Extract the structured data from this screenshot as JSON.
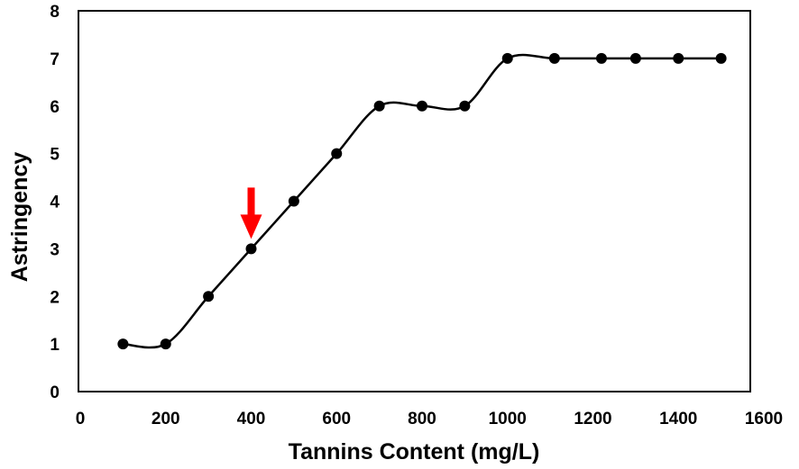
{
  "chart_data": {
    "type": "line",
    "title": "",
    "xlabel": "Tannins Content (mg/L)",
    "ylabel": "Astringency",
    "xlim": [
      0,
      1600
    ],
    "ylim": [
      0,
      8
    ],
    "xticks": [
      "0",
      "200",
      "400",
      "600",
      "800",
      "1000",
      "1200",
      "1400",
      "1600"
    ],
    "yticks": [
      "0",
      "1",
      "2",
      "3",
      "4",
      "5",
      "6",
      "7",
      "8"
    ],
    "grid": false,
    "legend": "none",
    "smooth": true,
    "series": [
      {
        "color": "#000000",
        "x": [
          100,
          200,
          300,
          400,
          500,
          600,
          700,
          800,
          900,
          1000,
          1110,
          1220,
          1300,
          1400,
          1500
        ],
        "y": [
          1,
          1,
          2,
          3,
          4,
          5,
          6,
          6,
          6,
          7,
          7,
          7,
          7,
          7,
          7
        ]
      }
    ],
    "annotations": [
      {
        "type": "arrow",
        "direction": "down",
        "color": "#ff0000",
        "x": 400,
        "y": 3
      }
    ]
  }
}
